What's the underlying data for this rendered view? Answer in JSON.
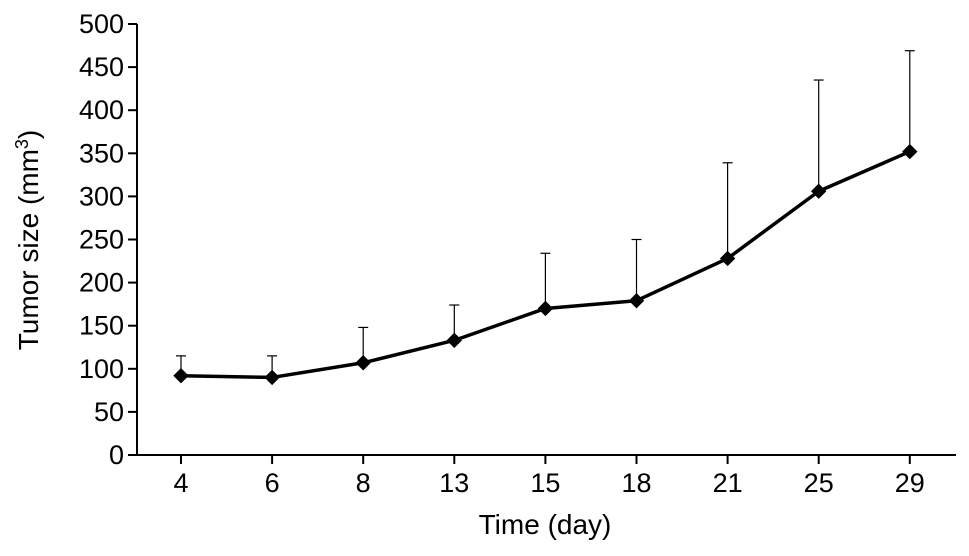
{
  "chart_data": {
    "type": "line",
    "title": "",
    "xlabel": "Time (day)",
    "ylabel": "Tumor size (mm",
    "ylabel_superscript": "3",
    "ylabel_suffix": ")",
    "categories": [
      "4",
      "6",
      "8",
      "13",
      "15",
      "18",
      "21",
      "25",
      "29"
    ],
    "series": [
      {
        "values": [
          92,
          90,
          107,
          133,
          170,
          179,
          228,
          306,
          352
        ],
        "error_upper": [
          115,
          115,
          148,
          174,
          234,
          250,
          339,
          435,
          469
        ],
        "color": "#000000",
        "marker": "diamond"
      }
    ],
    "ylim": [
      0,
      500
    ],
    "yticks": [
      0,
      50,
      100,
      150,
      200,
      250,
      300,
      350,
      400,
      450,
      500
    ],
    "grid": false,
    "legend": "none"
  }
}
